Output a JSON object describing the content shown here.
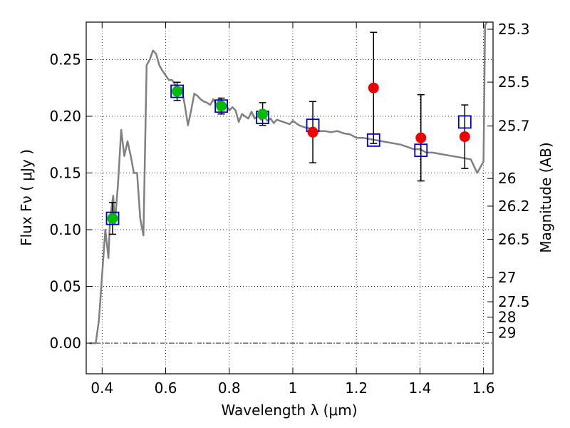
{
  "chart_data": {
    "type": "scatter",
    "xlabel": "Wavelength  λ (μm)",
    "ylabel": "Flux  Fν  ( μJy )",
    "y2label": "Magnitude (AB)",
    "xlim": [
      0.35,
      1.63
    ],
    "ylim": [
      -0.027,
      0.283
    ],
    "grid": true,
    "x_ticks": [
      0.4,
      0.6,
      0.8,
      1.0,
      1.2,
      1.4,
      1.6
    ],
    "x_tick_labels": [
      "0.4",
      "0.6",
      "0.8",
      "1",
      "1.2",
      "1.4",
      "1.6"
    ],
    "y_ticks": [
      0.0,
      0.05,
      0.1,
      0.15,
      0.2,
      0.25
    ],
    "y_tick_labels": [
      "0.00",
      "0.05",
      "0.10",
      "0.15",
      "0.20",
      "0.25"
    ],
    "mag_ticks": [
      {
        "label": "25.3",
        "flux": 0.2767
      },
      {
        "label": "25.5",
        "flux": 0.2301
      },
      {
        "label": "25.7",
        "flux": 0.1914
      },
      {
        "label": "26",
        "flux": 0.1452
      },
      {
        "label": "26.2",
        "flux": 0.1208
      },
      {
        "label": "26.5",
        "flux": 0.0916
      },
      {
        "label": "27",
        "flux": 0.0578
      },
      {
        "label": "27.5",
        "flux": 0.0365
      },
      {
        "label": "28",
        "flux": 0.023
      },
      {
        "label": "29",
        "flux": 0.0092
      }
    ],
    "series": [
      {
        "kind": "model-sed-line",
        "color": "#808080",
        "points": [
          [
            0.36,
            0.0
          ],
          [
            0.38,
            0.0
          ],
          [
            0.39,
            0.02
          ],
          [
            0.4,
            0.06
          ],
          [
            0.41,
            0.1
          ],
          [
            0.42,
            0.075
          ],
          [
            0.425,
            0.11
          ],
          [
            0.43,
            0.12
          ],
          [
            0.435,
            0.13
          ],
          [
            0.44,
            0.105
          ],
          [
            0.45,
            0.14
          ],
          [
            0.46,
            0.188
          ],
          [
            0.47,
            0.165
          ],
          [
            0.48,
            0.178
          ],
          [
            0.49,
            0.165
          ],
          [
            0.5,
            0.15
          ],
          [
            0.51,
            0.15
          ],
          [
            0.52,
            0.11
          ],
          [
            0.53,
            0.095
          ],
          [
            0.54,
            0.245
          ],
          [
            0.55,
            0.25
          ],
          [
            0.56,
            0.258
          ],
          [
            0.57,
            0.255
          ],
          [
            0.58,
            0.245
          ],
          [
            0.59,
            0.24
          ],
          [
            0.6,
            0.236
          ],
          [
            0.61,
            0.232
          ],
          [
            0.62,
            0.232
          ],
          [
            0.63,
            0.228
          ],
          [
            0.64,
            0.222
          ],
          [
            0.65,
            0.225
          ],
          [
            0.66,
            0.21
          ],
          [
            0.67,
            0.192
          ],
          [
            0.68,
            0.205
          ],
          [
            0.69,
            0.22
          ],
          [
            0.7,
            0.218
          ],
          [
            0.71,
            0.215
          ],
          [
            0.72,
            0.213
          ],
          [
            0.73,
            0.212
          ],
          [
            0.74,
            0.21
          ],
          [
            0.75,
            0.215
          ],
          [
            0.76,
            0.21
          ],
          [
            0.77,
            0.216
          ],
          [
            0.78,
            0.207
          ],
          [
            0.79,
            0.21
          ],
          [
            0.8,
            0.205
          ],
          [
            0.81,
            0.208
          ],
          [
            0.82,
            0.205
          ],
          [
            0.83,
            0.195
          ],
          [
            0.84,
            0.202
          ],
          [
            0.85,
            0.2
          ],
          [
            0.86,
            0.198
          ],
          [
            0.87,
            0.204
          ],
          [
            0.88,
            0.198
          ],
          [
            0.89,
            0.2
          ],
          [
            0.9,
            0.197
          ],
          [
            0.91,
            0.2
          ],
          [
            0.92,
            0.196
          ],
          [
            0.93,
            0.198
          ],
          [
            0.94,
            0.194
          ],
          [
            0.95,
            0.197
          ],
          [
            0.96,
            0.196
          ],
          [
            0.97,
            0.195
          ],
          [
            0.98,
            0.194
          ],
          [
            0.99,
            0.193
          ],
          [
            1.0,
            0.196
          ],
          [
            1.01,
            0.194
          ],
          [
            1.02,
            0.192
          ],
          [
            1.04,
            0.19
          ],
          [
            1.06,
            0.189
          ],
          [
            1.08,
            0.187
          ],
          [
            1.1,
            0.187
          ],
          [
            1.12,
            0.186
          ],
          [
            1.14,
            0.187
          ],
          [
            1.16,
            0.185
          ],
          [
            1.18,
            0.184
          ],
          [
            1.2,
            0.181
          ],
          [
            1.22,
            0.181
          ],
          [
            1.24,
            0.18
          ],
          [
            1.26,
            0.179
          ],
          [
            1.28,
            0.178
          ],
          [
            1.3,
            0.177
          ],
          [
            1.32,
            0.176
          ],
          [
            1.34,
            0.175
          ],
          [
            1.36,
            0.173
          ],
          [
            1.38,
            0.171
          ],
          [
            1.4,
            0.171
          ],
          [
            1.42,
            0.168
          ],
          [
            1.44,
            0.168
          ],
          [
            1.46,
            0.167
          ],
          [
            1.48,
            0.166
          ],
          [
            1.5,
            0.165
          ],
          [
            1.52,
            0.164
          ],
          [
            1.54,
            0.163
          ],
          [
            1.56,
            0.162
          ],
          [
            1.58,
            0.15
          ],
          [
            1.6,
            0.16
          ],
          [
            1.605,
            0.28
          ],
          [
            1.61,
            0.283
          ]
        ]
      },
      {
        "kind": "model-photometry-squares",
        "color": "#0000cc",
        "points": [
          [
            0.433,
            0.11
          ],
          [
            0.636,
            0.222
          ],
          [
            0.775,
            0.209
          ],
          [
            0.905,
            0.199
          ],
          [
            1.063,
            0.192
          ],
          [
            1.254,
            0.179
          ],
          [
            1.403,
            0.17
          ],
          [
            1.541,
            0.195
          ]
        ]
      },
      {
        "kind": "observed-photometry-error-bars",
        "color": "#000000",
        "points": [
          {
            "x": 0.433,
            "y": 0.11,
            "err": 0.014
          },
          {
            "x": 0.636,
            "y": 0.222,
            "err": 0.008
          },
          {
            "x": 0.775,
            "y": 0.209,
            "err": 0.007
          },
          {
            "x": 0.905,
            "y": 0.202,
            "err": 0.01
          },
          {
            "x": 1.063,
            "y": 0.186,
            "err": 0.027
          },
          {
            "x": 1.254,
            "y": 0.225,
            "err": 0.049
          },
          {
            "x": 1.403,
            "y": 0.181,
            "err": 0.038
          },
          {
            "x": 1.541,
            "y": 0.182,
            "err": 0.028
          }
        ]
      },
      {
        "kind": "observed-optical-circles",
        "color": "#00bb00",
        "points": [
          [
            0.433,
            0.11
          ],
          [
            0.636,
            0.222
          ],
          [
            0.775,
            0.209
          ],
          [
            0.905,
            0.202
          ]
        ]
      },
      {
        "kind": "observed-nir-circles",
        "color": "#ee0000",
        "points": [
          [
            1.063,
            0.186
          ],
          [
            1.254,
            0.225
          ],
          [
            1.403,
            0.181
          ],
          [
            1.541,
            0.182
          ]
        ]
      }
    ]
  }
}
